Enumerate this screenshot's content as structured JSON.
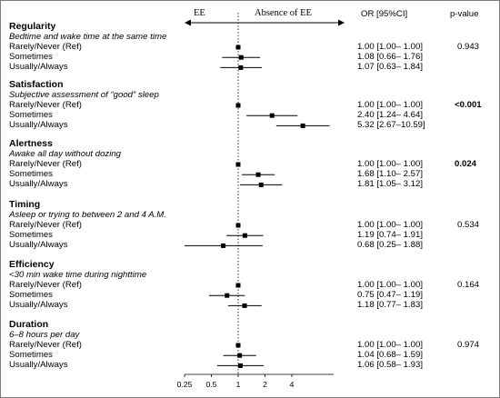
{
  "chart_data": {
    "type": "forest",
    "x_scale": "log2",
    "xlim": [
      0.25,
      5.6
    ],
    "x_ticks": [
      "0.25",
      "0.5",
      "1",
      "2",
      "4"
    ],
    "reference_line": 1,
    "direction_labels": {
      "left": "EE",
      "right": "Absence of EE"
    },
    "column_headers": {
      "or": "OR [95%CI]",
      "p": "p-value"
    },
    "groups": [
      {
        "title": "Regularity",
        "subtitle": "Bedtime and wake time at the same time",
        "p_value": "0.943",
        "p_bold": false,
        "rows": [
          {
            "label": "Rarely/Never (Ref)",
            "or": 1.0,
            "lo": 1.0,
            "hi": 1.0,
            "text": "1.00 [1.00– 1.00]"
          },
          {
            "label": "Sometimes",
            "or": 1.08,
            "lo": 0.66,
            "hi": 1.76,
            "text": "1.08 [0.66– 1.76]"
          },
          {
            "label": "Usually/Always",
            "or": 1.07,
            "lo": 0.63,
            "hi": 1.84,
            "text": "1.07 [0.63– 1.84]"
          }
        ]
      },
      {
        "title": "Satisfaction",
        "subtitle": "Subjective assessment of “good” sleep",
        "p_value": "<0.001",
        "p_bold": true,
        "rows": [
          {
            "label": "Rarely/Never (Ref)",
            "or": 1.0,
            "lo": 1.0,
            "hi": 1.0,
            "text": "1.00 [1.00– 1.00]"
          },
          {
            "label": "Sometimes",
            "or": 2.4,
            "lo": 1.24,
            "hi": 4.64,
            "text": "2.40 [1.24– 4.64]"
          },
          {
            "label": "Usually/Always",
            "or": 5.32,
            "lo": 2.67,
            "hi": 10.59,
            "text": "5.32 [2.67–10.59]"
          }
        ]
      },
      {
        "title": "Alertness",
        "subtitle": "Awake all day without dozing",
        "p_value": "0.024",
        "p_bold": true,
        "rows": [
          {
            "label": "Rarely/Never (Ref)",
            "or": 1.0,
            "lo": 1.0,
            "hi": 1.0,
            "text": "1.00 [1.00– 1.00]"
          },
          {
            "label": "Sometimes",
            "or": 1.68,
            "lo": 1.1,
            "hi": 2.57,
            "text": "1.68 [1.10– 2.57]"
          },
          {
            "label": "Usually/Always",
            "or": 1.81,
            "lo": 1.05,
            "hi": 3.12,
            "text": "1.81 [1.05– 3.12]"
          }
        ]
      },
      {
        "title": "Timing",
        "subtitle": "Asleep or trying to between 2 and 4 A.M.",
        "p_value": "0.534",
        "p_bold": false,
        "rows": [
          {
            "label": "Rarely/Never (Ref)",
            "or": 1.0,
            "lo": 1.0,
            "hi": 1.0,
            "text": "1.00 [1.00– 1.00]"
          },
          {
            "label": "Sometimes",
            "or": 1.19,
            "lo": 0.74,
            "hi": 1.91,
            "text": "1.19 [0.74– 1.91]"
          },
          {
            "label": "Usually/Always",
            "or": 0.68,
            "lo": 0.25,
            "hi": 1.88,
            "text": "0.68 [0.25– 1.88]"
          }
        ]
      },
      {
        "title": "Efficiency",
        "subtitle": "<30 min wake time during nighttime",
        "p_value": "0.164",
        "p_bold": false,
        "rows": [
          {
            "label": "Rarely/Never (Ref)",
            "or": 1.0,
            "lo": 1.0,
            "hi": 1.0,
            "text": "1.00 [1.00– 1.00]"
          },
          {
            "label": "Sometimes",
            "or": 0.75,
            "lo": 0.47,
            "hi": 1.19,
            "text": "0.75 [0.47– 1.19]"
          },
          {
            "label": "Usually/Always",
            "or": 1.18,
            "lo": 0.77,
            "hi": 1.83,
            "text": "1.18 [0.77– 1.83]"
          }
        ]
      },
      {
        "title": "Duration",
        "subtitle": "6–8 hours per day",
        "p_value": "0.974",
        "p_bold": false,
        "rows": [
          {
            "label": "Rarely/Never (Ref)",
            "or": 1.0,
            "lo": 1.0,
            "hi": 1.0,
            "text": "1.00 [1.00– 1.00]"
          },
          {
            "label": "Sometimes",
            "or": 1.04,
            "lo": 0.68,
            "hi": 1.59,
            "text": "1.04 [0.68– 1.59]"
          },
          {
            "label": "Usually/Always",
            "or": 1.06,
            "lo": 0.58,
            "hi": 1.93,
            "text": "1.06 [0.58– 1.93]"
          }
        ]
      }
    ]
  }
}
